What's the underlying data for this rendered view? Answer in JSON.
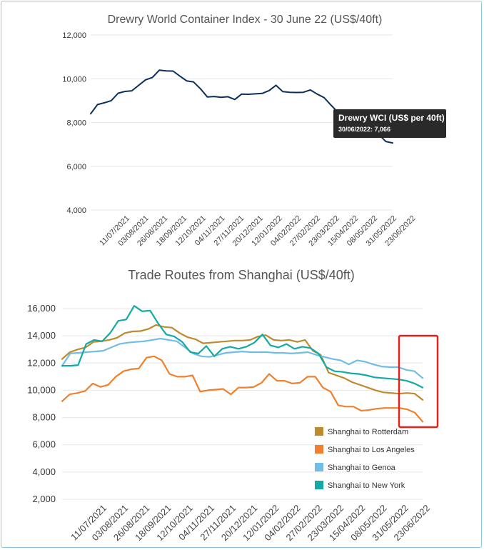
{
  "chart_data": [
    {
      "type": "line",
      "title": "Drewry World Container Index - 30 June 22 (US$/40ft)",
      "ylim": [
        4000,
        12000
      ],
      "yticks": [
        "4,000",
        "6,000",
        "8,000",
        "10,000",
        "12,000"
      ],
      "ytick_values": [
        4000,
        6000,
        8000,
        10000,
        12000
      ],
      "xtick_labels": [
        "11/07/2021",
        "03/08/2021",
        "26/08/2021",
        "18/09/2021",
        "12/10/2021",
        "04/11/2021",
        "27/11/2021",
        "20/12/2021",
        "12/01/2022",
        "04/02/2022",
        "27/02/2022",
        "23/03/2022",
        "15/04/2022",
        "08/05/2022",
        "31/05/2022",
        "23/06/2022"
      ],
      "grid": true,
      "series": [
        {
          "name": "Drewry WCI (US$ per 40ft)",
          "color": "#0b2f5a",
          "values": [
            8400,
            8820,
            8900,
            9000,
            9340,
            9420,
            9450,
            9700,
            9950,
            10060,
            10390,
            10360,
            10350,
            10120,
            9900,
            9850,
            9540,
            9170,
            9190,
            9150,
            9180,
            9050,
            9300,
            9290,
            9310,
            9330,
            9460,
            9700,
            9410,
            9380,
            9370,
            9380,
            9490,
            9300,
            9140,
            8800,
            8480,
            8140,
            8000,
            7980,
            7860,
            7710,
            7450,
            7130,
            7066
          ]
        }
      ],
      "tooltip": {
        "title": "Drewry WCI (US$ per 40ft)",
        "body": "30/06/2022: 7,066"
      }
    },
    {
      "type": "line",
      "title": "Trade Routes from Shanghai (US$/40ft)",
      "ylim": [
        2000,
        16000
      ],
      "yticks": [
        "2,000",
        "4,000",
        "6,000",
        "8,000",
        "10,000",
        "12,000",
        "14,000",
        "16,000"
      ],
      "ytick_values": [
        2000,
        4000,
        6000,
        8000,
        10000,
        12000,
        14000,
        16000
      ],
      "xtick_labels": [
        "11/07/2021",
        "03/08/2021",
        "26/08/2021",
        "18/09/2021",
        "12/10/2021",
        "04/11/2021",
        "27/11/2021",
        "20/12/2021",
        "12/01/2022",
        "04/02/2022",
        "27/02/2022",
        "23/03/2022",
        "15/04/2022",
        "08/05/2022",
        "31/05/2022",
        "23/06/2022"
      ],
      "grid": true,
      "legend_position": "bottom-right",
      "series": [
        {
          "name": "Shanghai to Rotterdam",
          "color": "#bf8a2c",
          "values": [
            12300,
            12800,
            13000,
            13150,
            13550,
            13600,
            13700,
            13850,
            14200,
            14320,
            14350,
            14500,
            14800,
            14650,
            14600,
            14200,
            13900,
            13750,
            13450,
            13500,
            13550,
            13600,
            13650,
            13650,
            13700,
            13950,
            14050,
            13700,
            13650,
            13700,
            13550,
            13700,
            12900,
            12600,
            11300,
            11100,
            10900,
            10600,
            10400,
            10200,
            10000,
            9850,
            9800,
            9750,
            9800,
            9750,
            9300
          ]
        },
        {
          "name": "Shanghai to Los Angeles",
          "color": "#f0802e",
          "values": [
            9200,
            9700,
            9800,
            9950,
            10500,
            10250,
            10400,
            11000,
            11400,
            11550,
            11600,
            12400,
            12500,
            12200,
            11200,
            11000,
            11000,
            11100,
            9900,
            10000,
            10050,
            10100,
            9700,
            10200,
            10200,
            10250,
            10550,
            11200,
            10700,
            10700,
            10500,
            10550,
            11000,
            11000,
            10200,
            9900,
            8900,
            8800,
            8800,
            8500,
            8550,
            8650,
            8700,
            8700,
            8700,
            8600,
            8350,
            7700
          ]
        },
        {
          "name": "Shanghai to Genoa",
          "color": "#72bde6",
          "values": [
            11800,
            12700,
            12750,
            12800,
            12850,
            12900,
            13150,
            13400,
            13500,
            13550,
            13600,
            13700,
            13800,
            13700,
            13600,
            13150,
            12700,
            12500,
            12450,
            12600,
            12750,
            12800,
            12850,
            12800,
            12800,
            12800,
            12750,
            12750,
            12700,
            12750,
            12800,
            12600,
            12450,
            12300,
            12200,
            11900,
            12200,
            12100,
            11900,
            11750,
            11700,
            11700,
            11500,
            11400,
            10900
          ]
        },
        {
          "name": "Shanghai to New York",
          "color": "#13aaa6",
          "values": [
            11800,
            11800,
            11850,
            13400,
            13700,
            13600,
            14200,
            15100,
            15200,
            16200,
            15800,
            15850,
            14900,
            14100,
            13950,
            13550,
            12800,
            12700,
            13250,
            12500,
            13050,
            13200,
            13050,
            13200,
            13500,
            14100,
            13300,
            13150,
            13400,
            13050,
            13200,
            13100,
            12700,
            11700,
            11400,
            11350,
            11250,
            11200,
            11100,
            10950,
            10900,
            10850,
            10800,
            10700,
            10500,
            10200
          ]
        }
      ],
      "highlight": {
        "color": "#e0221a",
        "shape": "rectangle"
      }
    }
  ]
}
